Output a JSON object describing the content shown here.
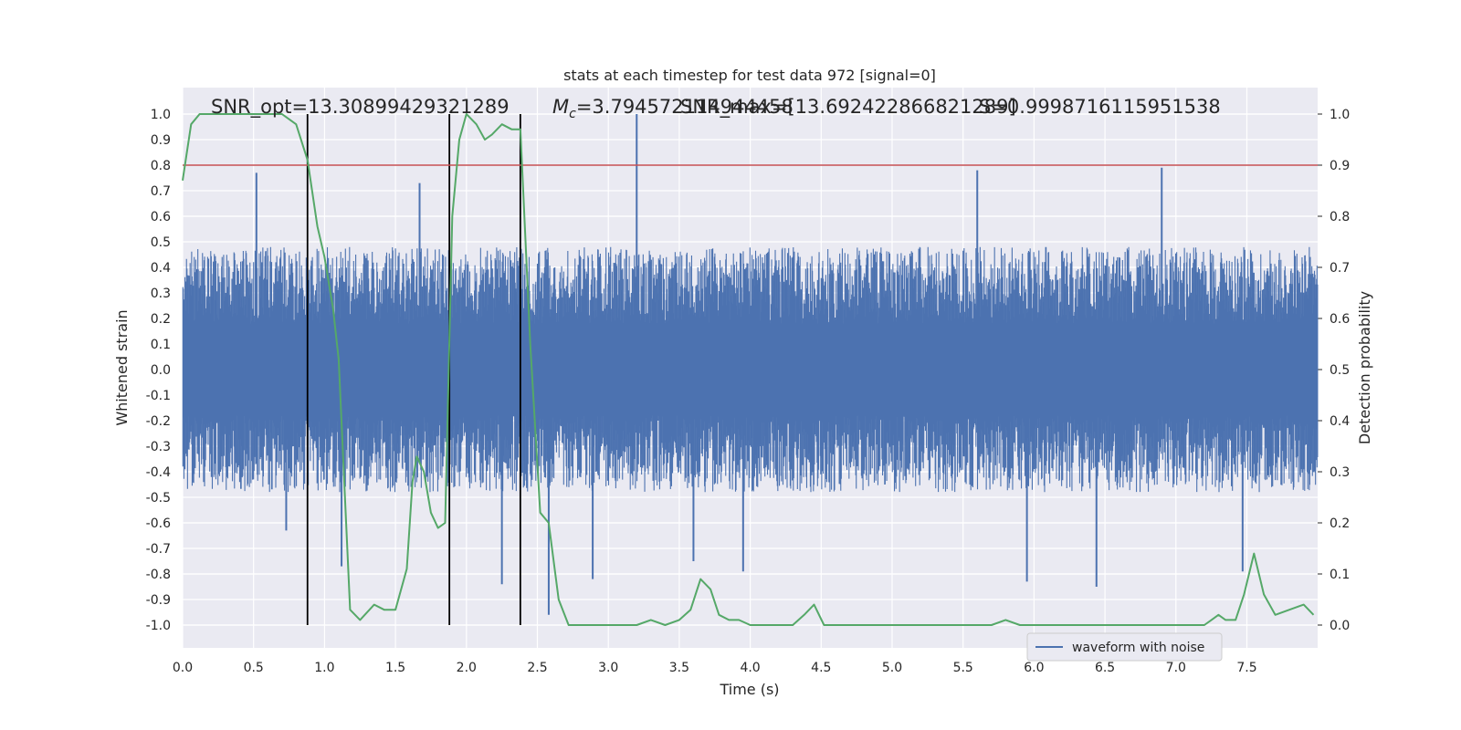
{
  "chart_data": {
    "type": "line",
    "title": "stats at each timestep for test data 972 [signal=0]",
    "xlabel": "Time (s)",
    "ylabel_left": "Whitened strain",
    "ylabel_right": "Detection probability",
    "xlim": [
      0.0,
      8.0
    ],
    "ylim_left": [
      -1.05,
      1.05
    ],
    "ylim_right": [
      -0.05,
      1.05
    ],
    "xticks": [
      "0.0",
      "0.5",
      "1.0",
      "1.5",
      "2.0",
      "2.5",
      "3.0",
      "3.5",
      "4.0",
      "4.5",
      "5.0",
      "5.5",
      "6.0",
      "6.5",
      "7.0",
      "7.5"
    ],
    "yticks_left": [
      "1.0",
      "0.9",
      "0.8",
      "0.7",
      "0.6",
      "0.5",
      "0.4",
      "0.3",
      "0.2",
      "0.1",
      "0.0",
      "-0.1",
      "-0.2",
      "-0.3",
      "-0.4",
      "-0.5",
      "-0.6",
      "-0.7",
      "-0.8",
      "-0.9",
      "-1.0"
    ],
    "yticks_right": [
      "1.0",
      "0.9",
      "0.8",
      "0.7",
      "0.6",
      "0.5",
      "0.4",
      "0.3",
      "0.2",
      "0.1",
      "0.0"
    ],
    "grid": true,
    "legend_position": "lower-right",
    "annotations": {
      "snr_opt": "SNR_opt=13.30899429321289",
      "mc": "=3.794572114944458",
      "mc_symbol": "M",
      "mc_subscript": "c",
      "snr_max": "SNR_max=[13.692422866821289]",
      "s": "S=0.9998716115951538"
    },
    "threshold": {
      "value": 0.9,
      "axis": "right",
      "color": "#c44e52"
    },
    "vlines_x": [
      0.88,
      1.88,
      2.38
    ],
    "vline_color": "#000000",
    "series": [
      {
        "name": "waveform with noise",
        "axis": "left",
        "color": "#4c72b0",
        "kind": "noise",
        "typical_amplitude": 0.4,
        "peaks": [
          {
            "x": 0.52,
            "y": 0.77
          },
          {
            "x": 0.73,
            "y": -0.63
          },
          {
            "x": 1.12,
            "y": -0.77
          },
          {
            "x": 1.67,
            "y": 0.73
          },
          {
            "x": 2.25,
            "y": -0.84
          },
          {
            "x": 2.58,
            "y": -0.96
          },
          {
            "x": 2.89,
            "y": -0.82
          },
          {
            "x": 3.2,
            "y": 1.0
          },
          {
            "x": 3.6,
            "y": -0.75
          },
          {
            "x": 3.95,
            "y": -0.79
          },
          {
            "x": 5.6,
            "y": 0.78
          },
          {
            "x": 5.95,
            "y": -0.83
          },
          {
            "x": 6.44,
            "y": -0.85
          },
          {
            "x": 6.9,
            "y": 0.79
          },
          {
            "x": 7.47,
            "y": -0.79
          }
        ]
      },
      {
        "name": "Detection probability",
        "axis": "right",
        "color": "#55a868",
        "kind": "line",
        "x": [
          0.0,
          0.06,
          0.12,
          0.25,
          0.5,
          0.7,
          0.8,
          0.88,
          0.95,
          1.0,
          1.06,
          1.1,
          1.18,
          1.25,
          1.35,
          1.42,
          1.5,
          1.58,
          1.62,
          1.65,
          1.7,
          1.75,
          1.8,
          1.85,
          1.9,
          1.95,
          2.0,
          2.07,
          2.13,
          2.18,
          2.25,
          2.32,
          2.38,
          2.45,
          2.52,
          2.58,
          2.65,
          2.72,
          2.8,
          2.95,
          3.1,
          3.2,
          3.3,
          3.4,
          3.5,
          3.58,
          3.65,
          3.72,
          3.78,
          3.85,
          3.92,
          4.0,
          4.1,
          4.2,
          4.3,
          4.38,
          4.45,
          4.52,
          4.6,
          4.8,
          5.0,
          5.2,
          5.4,
          5.6,
          5.7,
          5.8,
          5.9,
          6.0,
          6.2,
          6.5,
          6.8,
          6.9,
          7.0,
          7.1,
          7.2,
          7.25,
          7.3,
          7.35,
          7.42,
          7.48,
          7.55,
          7.62,
          7.7,
          7.8,
          7.9,
          7.97
        ],
        "y": [
          0.87,
          0.98,
          1.0,
          1.0,
          1.0,
          1.0,
          0.98,
          0.91,
          0.78,
          0.72,
          0.62,
          0.52,
          0.03,
          0.01,
          0.04,
          0.03,
          0.03,
          0.11,
          0.28,
          0.33,
          0.3,
          0.22,
          0.19,
          0.2,
          0.8,
          0.95,
          1.0,
          0.98,
          0.95,
          0.96,
          0.98,
          0.97,
          0.97,
          0.55,
          0.22,
          0.2,
          0.05,
          0.0,
          0.0,
          0.0,
          0.0,
          0.0,
          0.01,
          0.0,
          0.01,
          0.03,
          0.09,
          0.07,
          0.02,
          0.01,
          0.01,
          0.0,
          0.0,
          0.0,
          0.0,
          0.02,
          0.04,
          0.0,
          0.0,
          0.0,
          0.0,
          0.0,
          0.0,
          0.0,
          0.0,
          0.01,
          0.0,
          0.0,
          0.0,
          0.0,
          0.0,
          0.0,
          0.0,
          0.0,
          0.0,
          0.01,
          0.02,
          0.01,
          0.01,
          0.06,
          0.14,
          0.06,
          0.02,
          0.03,
          0.04,
          0.02
        ]
      }
    ]
  }
}
